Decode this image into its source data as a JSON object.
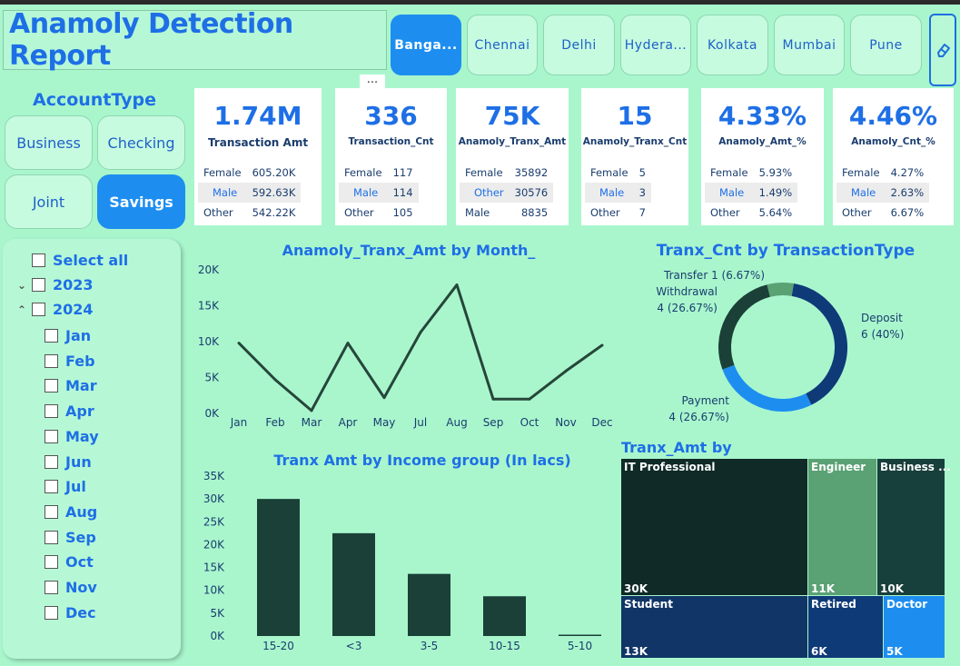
{
  "title": "Anamoly Detection Report",
  "cities": [
    {
      "label": "Banga...",
      "active": true
    },
    {
      "label": "Chennai",
      "active": false
    },
    {
      "label": "Delhi",
      "active": false
    },
    {
      "label": "Hydera...",
      "active": false
    },
    {
      "label": "Kolkata",
      "active": false
    },
    {
      "label": "Mumbai",
      "active": false
    },
    {
      "label": "Pune",
      "active": false
    }
  ],
  "more_options": "...",
  "account_type": {
    "title": "AccountType",
    "options": [
      "Business",
      "Checking",
      "Joint",
      "Savings"
    ],
    "selected": "Savings"
  },
  "cards": [
    {
      "value": "1.74M",
      "label": "Transaction Amt",
      "rows": [
        [
          "Female",
          "605.20K"
        ],
        [
          "Male",
          "592.63K"
        ],
        [
          "Other",
          "542.22K"
        ]
      ]
    },
    {
      "value": "336",
      "label": "Transaction_Cnt",
      "rows": [
        [
          "Female",
          "117"
        ],
        [
          "Male",
          "114"
        ],
        [
          "Other",
          "105"
        ]
      ]
    },
    {
      "value": "75K",
      "label": "Anamoly_Tranx_Amt",
      "rows": [
        [
          "Female",
          "35892"
        ],
        [
          "Other",
          "30576"
        ],
        [
          "Male",
          "8835"
        ]
      ]
    },
    {
      "value": "15",
      "label": "Anamoly_Tranx_Cnt",
      "rows": [
        [
          "Female",
          "5"
        ],
        [
          "Male",
          "3"
        ],
        [
          "Other",
          "7"
        ]
      ]
    },
    {
      "value": "4.33%",
      "label": "Anamoly_Amt_%",
      "rows": [
        [
          "Female",
          "5.93%"
        ],
        [
          "Male",
          "1.49%"
        ],
        [
          "Other",
          "5.64%"
        ]
      ]
    },
    {
      "value": "4.46%",
      "label": "Anamoly_Cnt_%",
      "rows": [
        [
          "Female",
          "4.27%"
        ],
        [
          "Male",
          "2.63%"
        ],
        [
          "Other",
          "6.67%"
        ]
      ]
    }
  ],
  "date_slicer": {
    "select_all": "Select all",
    "years": [
      "2023",
      "2024"
    ],
    "months": [
      "Jan",
      "Feb",
      "Mar",
      "Apr",
      "May",
      "Jun",
      "Jul",
      "Aug",
      "Sep",
      "Oct",
      "Nov",
      "Dec"
    ]
  },
  "chart_data": [
    {
      "type": "line",
      "title": "Anamoly_Tranx_Amt by Month_",
      "x": [
        "Jan",
        "Feb",
        "Mar",
        "Apr",
        "May",
        "Jul",
        "Aug",
        "Sep",
        "Oct",
        "Nov",
        "Dec"
      ],
      "series": [
        {
          "name": "Anamoly_Tranx_Amt",
          "values": [
            9800,
            4700,
            400,
            9800,
            2200,
            11300,
            17900,
            2000,
            2000,
            5900,
            9500
          ],
          "color": "#26463a"
        }
      ],
      "ylim": [
        0,
        20000
      ],
      "yticks": [
        "0K",
        "5K",
        "10K",
        "15K",
        "20K"
      ]
    },
    {
      "type": "pie",
      "title": "Tranx_Cnt by TransactionType",
      "slices": [
        {
          "name": "Deposit",
          "value": 6,
          "pct": "40%",
          "color": "#0f3a78",
          "label": "Deposit",
          "sublabel": "6 (40%)"
        },
        {
          "name": "Payment",
          "value": 4,
          "pct": "26.67%",
          "color": "#1d8ef0",
          "label": "Payment",
          "sublabel": "4 (26.67%)"
        },
        {
          "name": "Withdrawal",
          "value": 4,
          "pct": "26.67%",
          "color": "#1a4038",
          "label": "Withdrawal",
          "sublabel": "4 (26.67%)"
        },
        {
          "name": "Transfer",
          "value": 1,
          "pct": "6.67%",
          "color": "#5aa174",
          "label": "Transfer 1 (6.67%)",
          "sublabel": ""
        }
      ]
    },
    {
      "type": "bar",
      "title": "Tranx Amt by Income group (In lacs)",
      "categories": [
        "15-20",
        "<3",
        "3-5",
        "10-15",
        "5-10"
      ],
      "values": [
        30000,
        22500,
        13600,
        8700,
        300
      ],
      "color": "#1a4038",
      "ylim": [
        0,
        35000
      ],
      "yticks": [
        "0K",
        "5K",
        "10K",
        "15K",
        "20K",
        "25K",
        "30K",
        "35K"
      ]
    },
    {
      "type": "treemap",
      "title": "Tranx_Amt by Occupation",
      "items": [
        {
          "name": "IT Professional",
          "value": "30K",
          "color": "#0f2a27"
        },
        {
          "name": "Engineer",
          "value": "11K",
          "color": "#5aa174"
        },
        {
          "name": "Business ...",
          "value": "10K",
          "color": "#173f3b"
        },
        {
          "name": "Student",
          "value": "13K",
          "color": "#103566"
        },
        {
          "name": "Retired",
          "value": "6K",
          "color": "#0f3a78"
        },
        {
          "name": "Doctor",
          "value": "5K",
          "color": "#1d8ef0"
        }
      ]
    }
  ]
}
